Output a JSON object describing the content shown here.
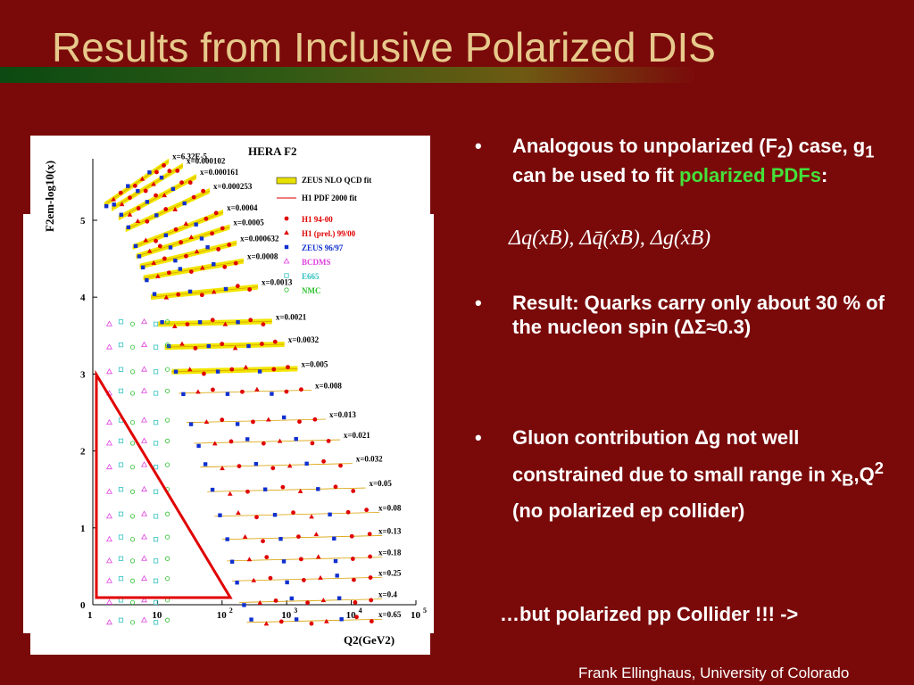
{
  "slide": {
    "title": "Results from Inclusive Polarized DIS",
    "footer": "Frank Ellinghaus, University of Colorado",
    "collider_note": "…but polarized pp Collider !!! ->"
  },
  "bullets": [
    {
      "parts": [
        "Analogous to unpolarized (F",
        "2",
        ") case, g",
        "1",
        " can be used to fit ",
        "polarized PDFs",
        ":"
      ]
    },
    {
      "text": "Result: Quarks carry only about 30 % of the nucleon spin (ΔΣ≈0.3)"
    },
    {
      "parts": [
        "Gluon contribution ",
        "Δ",
        "g not well constrained due to small range in x",
        "B",
        ",Q",
        "2",
        " (no polarized ep collider)"
      ]
    }
  ],
  "formula": "Δq(xB), Δq̄(xB), Δg(xB)",
  "chart_data": {
    "type": "scatter",
    "title": "HERA F2",
    "ylabel": "F2em-log10(x)",
    "xlabel": "Q2(GeV2)",
    "xscale": "log",
    "xlim": [
      1,
      100000
    ],
    "ylim": [
      0,
      5.8
    ],
    "x_ticks": [
      "1",
      "10",
      "10^2",
      "10^3",
      "10^4",
      "10^5"
    ],
    "y_ticks": [
      "0",
      "1",
      "2",
      "3",
      "4",
      "5"
    ],
    "legend": [
      {
        "label": "ZEUS NLO QCD fit",
        "color": "#e8e000",
        "marker": "band"
      },
      {
        "label": "H1 PDF 2000 fit",
        "color": "#e03030",
        "marker": "line"
      },
      {
        "label": "H1 94-00",
        "color": "#e00000",
        "marker": "circle"
      },
      {
        "label": "H1 (prel.) 99/00",
        "color": "#e00000",
        "marker": "triangle"
      },
      {
        "label": "ZEUS 96/97",
        "color": "#1030d0",
        "marker": "square"
      },
      {
        "label": "BCDMS",
        "color": "#e040e0",
        "marker": "triangle-open"
      },
      {
        "label": "E665",
        "color": "#30c0c0",
        "marker": "square-open"
      },
      {
        "label": "NMC",
        "color": "#30c030",
        "marker": "circle-open"
      }
    ],
    "bins": [
      {
        "x": "x=6.32E-5",
        "offset": 5.55
      },
      {
        "x": "x=0.000102",
        "offset": 5.5
      },
      {
        "x": "x=0.000161",
        "offset": 5.38
      },
      {
        "x": "x=0.000253",
        "offset": 5.23
      },
      {
        "x": "x=0.0004",
        "offset": 5.0
      },
      {
        "x": "x=0.0005",
        "offset": 4.88
      },
      {
        "x": "x=0.000632",
        "offset": 4.75
      },
      {
        "x": "x=0.0008",
        "offset": 4.6
      },
      {
        "x": "x=0.0013",
        "offset": 4.35
      },
      {
        "x": "x=0.0021",
        "offset": 4.0
      },
      {
        "x": "x=0.0032",
        "offset": 3.7
      },
      {
        "x": "x=0.005",
        "offset": 3.38
      },
      {
        "x": "x=0.008",
        "offset": 3.1
      },
      {
        "x": "x=0.013",
        "offset": 2.72
      },
      {
        "x": "x=0.021",
        "offset": 2.45
      },
      {
        "x": "x=0.032",
        "offset": 2.14
      },
      {
        "x": "x=0.05",
        "offset": 1.82
      },
      {
        "x": "x=0.08",
        "offset": 1.5
      },
      {
        "x": "x=0.13",
        "offset": 1.2
      },
      {
        "x": "x=0.18",
        "offset": 0.92
      },
      {
        "x": "x=0.25",
        "offset": 0.66
      },
      {
        "x": "x=0.4",
        "offset": 0.38
      },
      {
        "x": "x=0.65",
        "offset": 0.12
      }
    ],
    "colors": {
      "slide_bg": "#7a0a0a",
      "title": "#e7c98b",
      "highlight": "#44e03a",
      "triangle": "#e00000"
    }
  }
}
